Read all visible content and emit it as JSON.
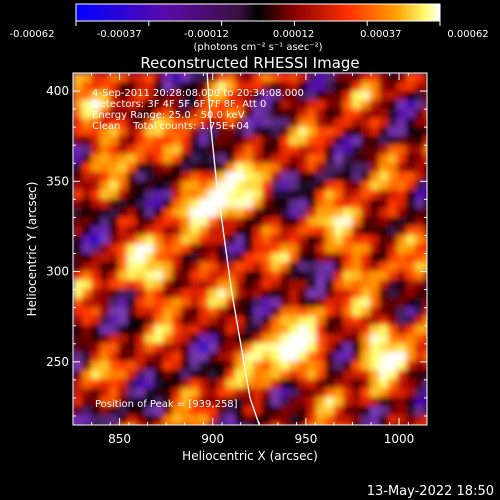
{
  "colorbar": {
    "ticks": [
      "-0.00062",
      "-0.00037",
      "-0.00012",
      "0.00012",
      "0.00037",
      "0.00062"
    ],
    "unit_label": "(photons cm⁻² s⁻¹ asec⁻²)",
    "colors": [
      "#0000ff",
      "#4b00aa",
      "#7d3cb4",
      "#000000",
      "#8a0000",
      "#ff3300",
      "#ff9900",
      "#ffff66",
      "#ffffff"
    ]
  },
  "chart_data": {
    "type": "heatmap",
    "title": "Reconstructed RHESSI Image",
    "xlabel": "Heliocentric X (arcsec)",
    "ylabel": "Heliocentric Y (arcsec)",
    "xlim": [
      825,
      1015
    ],
    "ylim": [
      215,
      410
    ],
    "xticks": [
      850,
      900,
      950,
      1000
    ],
    "yticks": [
      250,
      300,
      350,
      400
    ],
    "annotations": [
      "4-Sep-2011 20:28:08.000 to 20:34:08.000",
      "Detectors: 3F 4F 5F 6F 7F 8F, Att 0",
      "Energy Range: 25.0 - 50.0 keV",
      "Clean    Total counts: 1.75E+04"
    ],
    "peak_label": "Position of Peak = [939,258]",
    "limb_curve": [
      [
        897,
        410
      ],
      [
        899,
        380
      ],
      [
        902,
        350
      ],
      [
        906,
        320
      ],
      [
        910,
        290
      ],
      [
        915,
        260
      ],
      [
        920,
        230
      ],
      [
        925,
        215
      ]
    ],
    "bright_spots": [
      {
        "x": 903,
        "y": 342,
        "value": 0.00062
      },
      {
        "x": 938,
        "y": 258,
        "value": 0.00062
      },
      {
        "x": 870,
        "y": 302,
        "value": 0.00048
      },
      {
        "x": 990,
        "y": 262,
        "value": 0.0005
      },
      {
        "x": 845,
        "y": 385,
        "value": 0.0004
      },
      {
        "x": 975,
        "y": 320,
        "value": 0.00038
      }
    ]
  },
  "footer": {
    "timestamp": "13-May-2022 18:50"
  }
}
